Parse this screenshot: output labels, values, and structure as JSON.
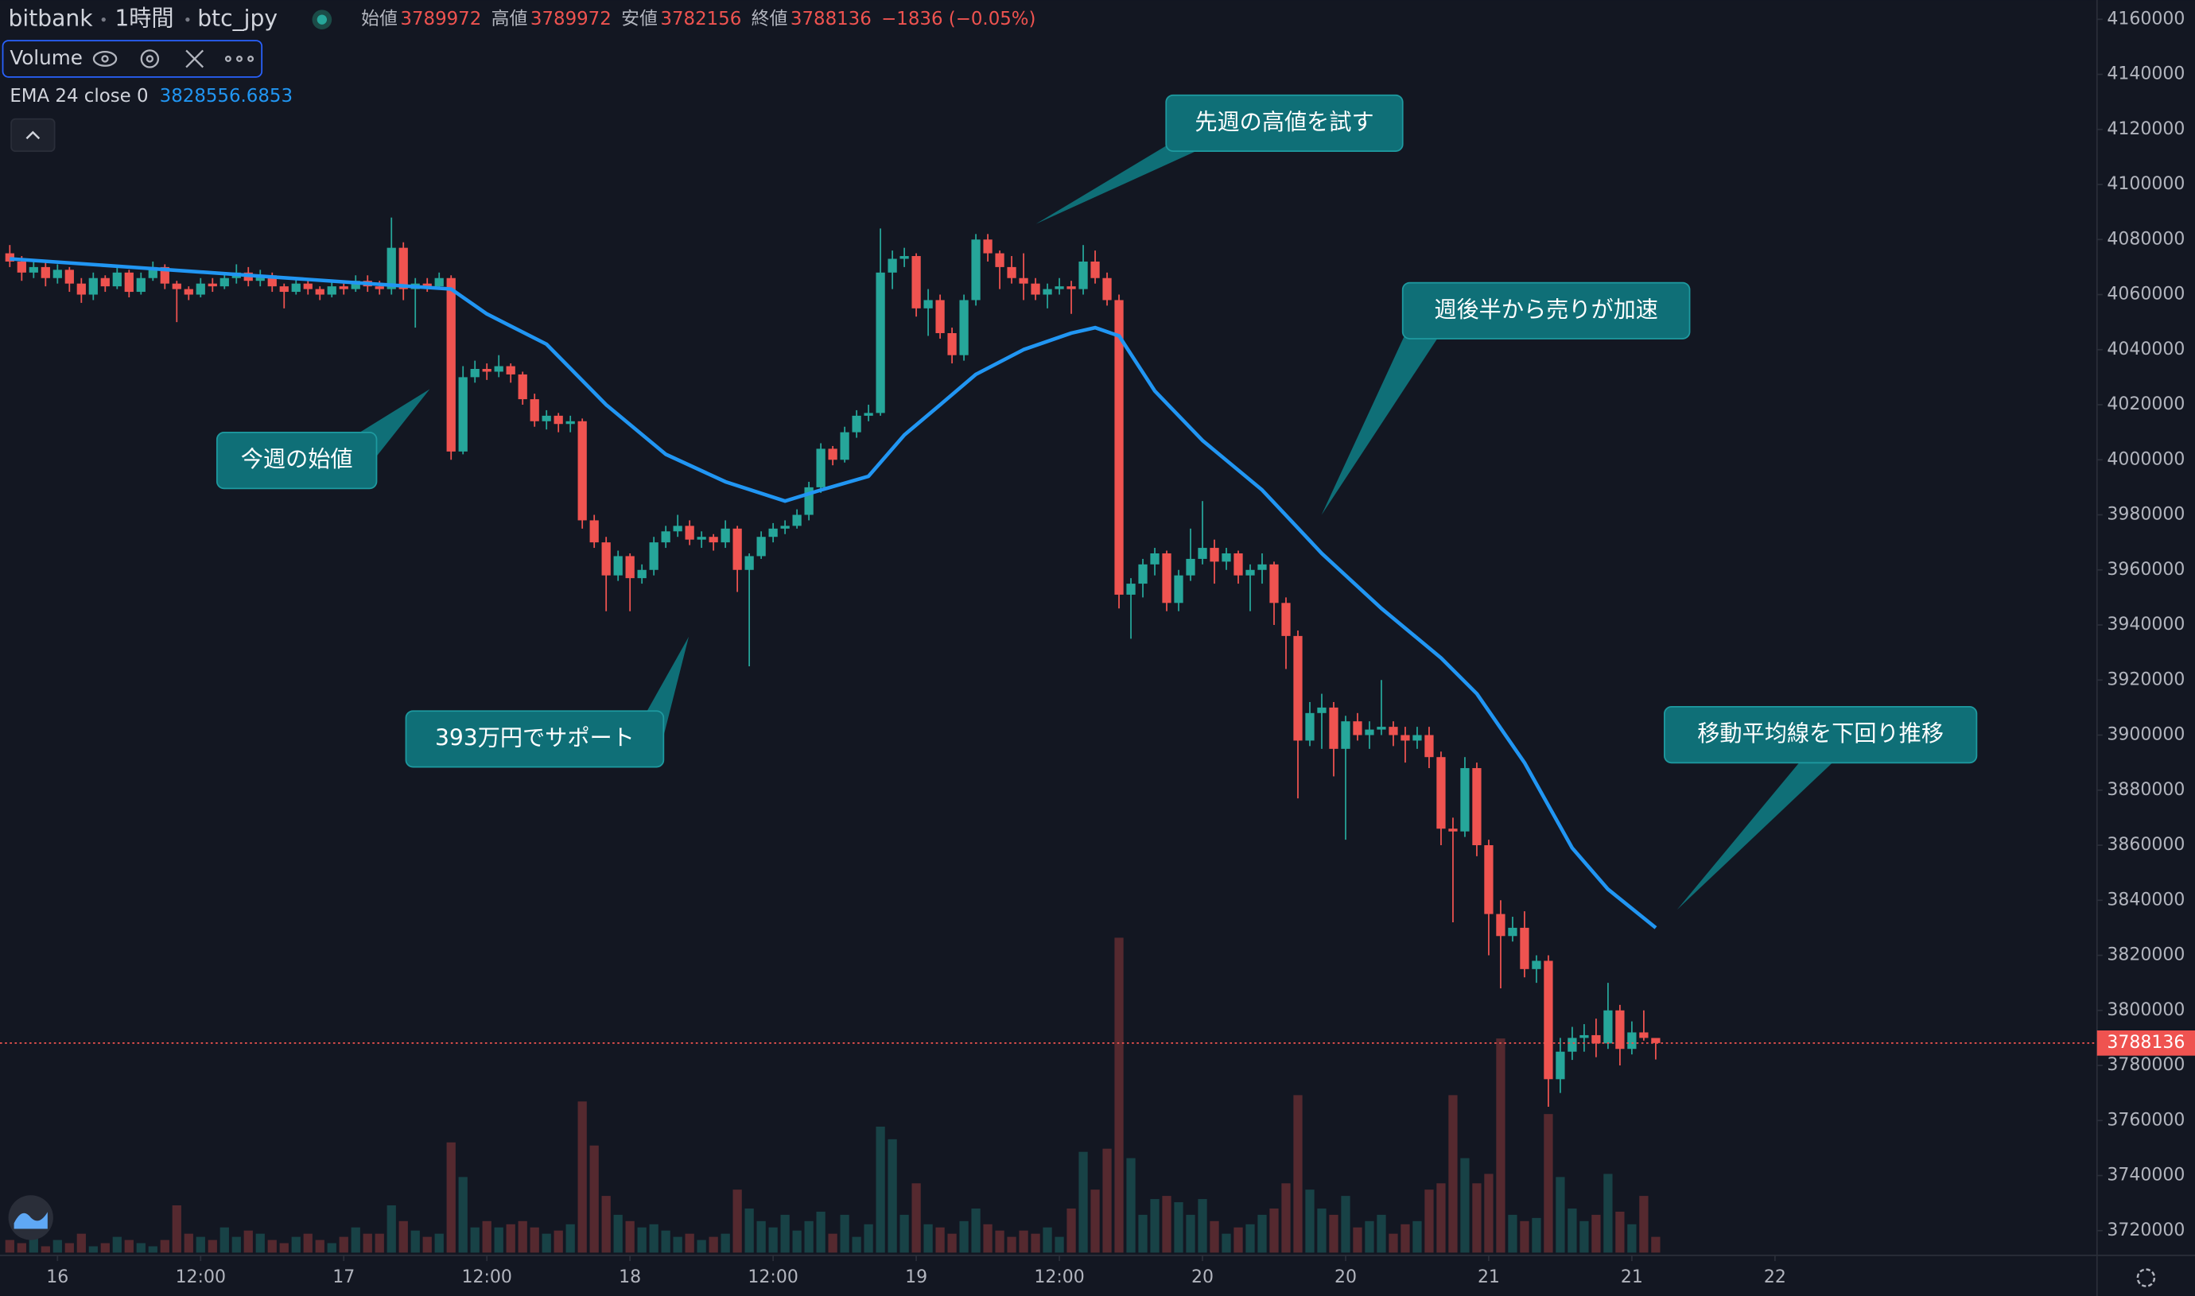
{
  "chart_data": {
    "type": "candlestick",
    "header": {
      "exchange": "bitbank",
      "interval": "1時間",
      "symbol": "btc_jpy",
      "ohlc": [
        {
          "label": "始値",
          "value": 3789972
        },
        {
          "label": "高値",
          "value": 3789972
        },
        {
          "label": "安値",
          "value": 3782156
        },
        {
          "label": "終値",
          "value": 3788136
        }
      ],
      "change": "−1836 (−0.05%)"
    },
    "volume_legend": "Volume",
    "ema": {
      "name": "EMA 24 close 0",
      "last": 3828556.6853,
      "color": "#2196f3",
      "x": [
        0,
        10,
        20,
        30,
        37,
        40,
        45,
        50,
        55,
        60,
        65,
        68,
        72,
        75,
        78,
        81,
        85,
        89,
        91,
        93,
        96,
        100,
        105,
        110,
        115,
        120,
        123,
        127,
        131,
        134,
        138
      ],
      "values": [
        4073000,
        4070000,
        4067000,
        4064000,
        4062000,
        4053000,
        4042000,
        4020000,
        4002000,
        3992000,
        3985000,
        3989000,
        3994000,
        4009000,
        4020000,
        4031000,
        4040000,
        4046000,
        4048000,
        4045000,
        4025000,
        4007000,
        3989000,
        3966000,
        3946000,
        3928000,
        3915000,
        3890000,
        3859000,
        3844000,
        3830000
      ]
    },
    "up_color": "#26a69a",
    "down_color": "#ef5350",
    "candles": [
      [
        4075000,
        4078000,
        4070000,
        4072000
      ],
      [
        4072000,
        4074000,
        4065000,
        4068000
      ],
      [
        4068000,
        4072000,
        4066000,
        4070000
      ],
      [
        4070000,
        4072000,
        4063000,
        4066000
      ],
      [
        4066000,
        4071000,
        4064000,
        4069000
      ],
      [
        4069000,
        4070000,
        4061000,
        4064000
      ],
      [
        4064000,
        4066000,
        4057000,
        4060000
      ],
      [
        4060000,
        4068000,
        4058000,
        4066000
      ],
      [
        4066000,
        4067000,
        4061000,
        4063000
      ],
      [
        4063000,
        4070000,
        4062000,
        4068000
      ],
      [
        4068000,
        4069000,
        4059000,
        4061000
      ],
      [
        4061000,
        4068000,
        4060000,
        4066000
      ],
      [
        4066000,
        4072000,
        4065000,
        4070000
      ],
      [
        4070000,
        4071000,
        4062000,
        4064000
      ],
      [
        4064000,
        4065000,
        4050000,
        4062000
      ],
      [
        4062000,
        4063000,
        4058000,
        4060000
      ],
      [
        4060000,
        4066000,
        4059000,
        4064000
      ],
      [
        4064000,
        4066000,
        4061000,
        4063000
      ],
      [
        4063000,
        4068000,
        4062000,
        4066000
      ],
      [
        4066000,
        4071000,
        4064000,
        4068000
      ],
      [
        4068000,
        4070000,
        4063000,
        4065000
      ],
      [
        4065000,
        4069000,
        4063000,
        4067000
      ],
      [
        4067000,
        4068000,
        4061000,
        4063000
      ],
      [
        4063000,
        4064000,
        4055000,
        4061000
      ],
      [
        4061000,
        4066000,
        4060000,
        4064000
      ],
      [
        4064000,
        4066000,
        4060000,
        4062000
      ],
      [
        4062000,
        4063000,
        4058000,
        4060000
      ],
      [
        4060000,
        4065000,
        4059000,
        4063000
      ],
      [
        4063000,
        4064000,
        4060000,
        4062000
      ],
      [
        4062000,
        4067000,
        4061000,
        4065000
      ],
      [
        4065000,
        4067000,
        4061000,
        4063000
      ],
      [
        4063000,
        4065000,
        4060000,
        4062000
      ],
      [
        4062000,
        4088000,
        4060000,
        4077000
      ],
      [
        4077000,
        4079000,
        4058000,
        4062000
      ],
      [
        4062000,
        4066000,
        4048000,
        4064000
      ],
      [
        4064000,
        4066000,
        4061000,
        4063000
      ],
      [
        4063000,
        4068000,
        4062000,
        4066000
      ],
      [
        4066000,
        4067000,
        4000000,
        4003000
      ],
      [
        4003000,
        4034000,
        4002000,
        4030000
      ],
      [
        4030000,
        4036000,
        4028000,
        4033000
      ],
      [
        4033000,
        4035000,
        4029000,
        4032000
      ],
      [
        4032000,
        4038000,
        4030000,
        4034000
      ],
      [
        4034000,
        4035000,
        4028000,
        4031000
      ],
      [
        4031000,
        4032000,
        4020000,
        4022000
      ],
      [
        4022000,
        4024000,
        4012000,
        4014000
      ],
      [
        4014000,
        4018000,
        4011000,
        4016000
      ],
      [
        4016000,
        4017000,
        4010000,
        4013000
      ],
      [
        4013000,
        4016000,
        4010000,
        4014000
      ],
      [
        4014000,
        4015000,
        3975000,
        3978000
      ],
      [
        3978000,
        3980000,
        3968000,
        3970000
      ],
      [
        3970000,
        3972000,
        3945000,
        3958000
      ],
      [
        3958000,
        3967000,
        3956000,
        3965000
      ],
      [
        3965000,
        3966000,
        3945000,
        3957000
      ],
      [
        3957000,
        3962000,
        3955000,
        3960000
      ],
      [
        3960000,
        3972000,
        3958000,
        3970000
      ],
      [
        3970000,
        3976000,
        3968000,
        3974000
      ],
      [
        3974000,
        3980000,
        3972000,
        3976000
      ],
      [
        3976000,
        3978000,
        3969000,
        3971000
      ],
      [
        3971000,
        3974000,
        3968000,
        3972000
      ],
      [
        3972000,
        3973000,
        3967000,
        3970000
      ],
      [
        3970000,
        3978000,
        3968000,
        3975000
      ],
      [
        3975000,
        3976000,
        3952000,
        3960000
      ],
      [
        3960000,
        3966000,
        3925000,
        3965000
      ],
      [
        3965000,
        3974000,
        3964000,
        3972000
      ],
      [
        3972000,
        3977000,
        3970000,
        3975000
      ],
      [
        3975000,
        3978000,
        3973000,
        3976000
      ],
      [
        3976000,
        3982000,
        3975000,
        3980000
      ],
      [
        3980000,
        3992000,
        3978000,
        3990000
      ],
      [
        3990000,
        4006000,
        3988000,
        4004000
      ],
      [
        4004000,
        4005000,
        3998000,
        4000000
      ],
      [
        4000000,
        4012000,
        3999000,
        4010000
      ],
      [
        4010000,
        4018000,
        4008000,
        4016000
      ],
      [
        4016000,
        4020000,
        4014000,
        4017000
      ],
      [
        4017000,
        4084000,
        4016000,
        4068000
      ],
      [
        4068000,
        4076000,
        4062000,
        4073000
      ],
      [
        4073000,
        4077000,
        4070000,
        4074000
      ],
      [
        4074000,
        4075000,
        4052000,
        4055000
      ],
      [
        4055000,
        4062000,
        4045000,
        4058000
      ],
      [
        4058000,
        4060000,
        4044000,
        4046000
      ],
      [
        4046000,
        4048000,
        4035000,
        4038000
      ],
      [
        4038000,
        4060000,
        4036000,
        4058000
      ],
      [
        4058000,
        4082000,
        4056000,
        4080000
      ],
      [
        4080000,
        4082000,
        4072000,
        4075000
      ],
      [
        4075000,
        4076000,
        4062000,
        4070000
      ],
      [
        4070000,
        4074000,
        4064000,
        4066000
      ],
      [
        4066000,
        4075000,
        4058000,
        4064000
      ],
      [
        4064000,
        4066000,
        4058000,
        4060000
      ],
      [
        4060000,
        4064000,
        4055000,
        4062000
      ],
      [
        4062000,
        4066000,
        4060000,
        4063000
      ],
      [
        4063000,
        4065000,
        4053000,
        4062000
      ],
      [
        4062000,
        4078000,
        4060000,
        4072000
      ],
      [
        4072000,
        4076000,
        4064000,
        4066000
      ],
      [
        4066000,
        4068000,
        4056000,
        4058000
      ],
      [
        4058000,
        4060000,
        3946000,
        3951000
      ],
      [
        3951000,
        3957000,
        3935000,
        3955000
      ],
      [
        3955000,
        3964000,
        3950000,
        3962000
      ],
      [
        3962000,
        3968000,
        3958000,
        3966000
      ],
      [
        3966000,
        3967000,
        3945000,
        3948000
      ],
      [
        3948000,
        3960000,
        3945000,
        3958000
      ],
      [
        3958000,
        3975000,
        3956000,
        3964000
      ],
      [
        3964000,
        3985000,
        3962000,
        3968000
      ],
      [
        3968000,
        3971000,
        3955000,
        3963000
      ],
      [
        3963000,
        3968000,
        3960000,
        3966000
      ],
      [
        3966000,
        3967000,
        3955000,
        3958000
      ],
      [
        3958000,
        3962000,
        3945000,
        3960000
      ],
      [
        3960000,
        3966000,
        3955000,
        3962000
      ],
      [
        3962000,
        3963000,
        3940000,
        3948000
      ],
      [
        3948000,
        3950000,
        3924000,
        3936000
      ],
      [
        3936000,
        3938000,
        3877000,
        3898000
      ],
      [
        3898000,
        3912000,
        3896000,
        3908000
      ],
      [
        3908000,
        3915000,
        3895000,
        3910000
      ],
      [
        3910000,
        3912000,
        3885000,
        3895000
      ],
      [
        3895000,
        3907000,
        3862000,
        3905000
      ],
      [
        3905000,
        3908000,
        3898000,
        3900000
      ],
      [
        3900000,
        3905000,
        3895000,
        3902000
      ],
      [
        3902000,
        3920000,
        3900000,
        3903000
      ],
      [
        3903000,
        3905000,
        3896000,
        3900000
      ],
      [
        3900000,
        3903000,
        3890000,
        3898000
      ],
      [
        3898000,
        3903000,
        3895000,
        3900000
      ],
      [
        3900000,
        3903000,
        3888000,
        3892000
      ],
      [
        3892000,
        3894000,
        3860000,
        3866000
      ],
      [
        3866000,
        3870000,
        3832000,
        3865000
      ],
      [
        3865000,
        3892000,
        3863000,
        3888000
      ],
      [
        3888000,
        3890000,
        3856000,
        3860000
      ],
      [
        3860000,
        3862000,
        3820000,
        3835000
      ],
      [
        3835000,
        3840000,
        3808000,
        3827000
      ],
      [
        3827000,
        3834000,
        3825000,
        3830000
      ],
      [
        3830000,
        3836000,
        3812000,
        3815000
      ],
      [
        3815000,
        3820000,
        3810000,
        3818000
      ],
      [
        3818000,
        3820000,
        3765000,
        3775000
      ],
      [
        3775000,
        3790000,
        3770000,
        3785000
      ],
      [
        3785000,
        3794000,
        3782000,
        3790000
      ],
      [
        3790000,
        3795000,
        3785000,
        3791000
      ],
      [
        3791000,
        3797000,
        3783000,
        3788000
      ],
      [
        3788000,
        3810000,
        3786000,
        3800000
      ],
      [
        3800000,
        3802000,
        3780000,
        3786000
      ],
      [
        3786000,
        3796000,
        3784000,
        3792000
      ],
      [
        3792000,
        3800000,
        3789000,
        3790000
      ],
      [
        3789972,
        3789972,
        3782156,
        3788136
      ]
    ],
    "volume": [
      4,
      3,
      5,
      2,
      4,
      3,
      6,
      2,
      3,
      5,
      4,
      3,
      2,
      4,
      15,
      6,
      5,
      4,
      8,
      5,
      7,
      6,
      4,
      3,
      5,
      6,
      4,
      3,
      5,
      8,
      6,
      6,
      15,
      10,
      7,
      5,
      6,
      35,
      24,
      8,
      10,
      8,
      9,
      10,
      8,
      6,
      7,
      9,
      48,
      34,
      18,
      12,
      10,
      8,
      9,
      7,
      5,
      6,
      4,
      5,
      6,
      20,
      14,
      10,
      8,
      12,
      7,
      10,
      13,
      6,
      12,
      5,
      9,
      40,
      36,
      12,
      22,
      9,
      8,
      6,
      10,
      14,
      9,
      7,
      5,
      7,
      6,
      8,
      5,
      14,
      32,
      20,
      33,
      100,
      30,
      12,
      17,
      18,
      16,
      12,
      17,
      10,
      6,
      8,
      9,
      12,
      14,
      22,
      50,
      20,
      14,
      12,
      18,
      8,
      10,
      12,
      6,
      9,
      10,
      20,
      22,
      50,
      30,
      22,
      25,
      68,
      12,
      10,
      11,
      44,
      24,
      14,
      10,
      12,
      25,
      13,
      9,
      18,
      5
    ],
    "last_price": 3788136,
    "ylim": [
      3711000,
      4167000
    ],
    "yticks": [
      3720000,
      3740000,
      3760000,
      3780000,
      3800000,
      3820000,
      3840000,
      3860000,
      3880000,
      3900000,
      3920000,
      3940000,
      3960000,
      3980000,
      4000000,
      4020000,
      4040000,
      4060000,
      4080000,
      4100000,
      4120000,
      4140000,
      4160000
    ],
    "xticks": [
      {
        "value": 4,
        "label": "16"
      },
      {
        "value": 16,
        "label": "12:00"
      },
      {
        "value": 28,
        "label": "17"
      },
      {
        "value": 40,
        "label": "12:00"
      },
      {
        "value": 52,
        "label": "18"
      },
      {
        "value": 64,
        "label": "12:00"
      },
      {
        "value": 76,
        "label": "19"
      },
      {
        "value": 88,
        "label": "12:00"
      },
      {
        "value": 100,
        "label": "20"
      },
      {
        "value": 112,
        "label": "20"
      },
      {
        "value": 124,
        "label": "21"
      },
      {
        "value": 136,
        "label": "21"
      },
      {
        "value": 148,
        "label": "22"
      }
    ],
    "annotations": [
      "先週の高値を試す",
      "週後半から売りが加速",
      "今週の始値",
      "393万円でサポート",
      "移動平均線を下回り推移"
    ]
  }
}
